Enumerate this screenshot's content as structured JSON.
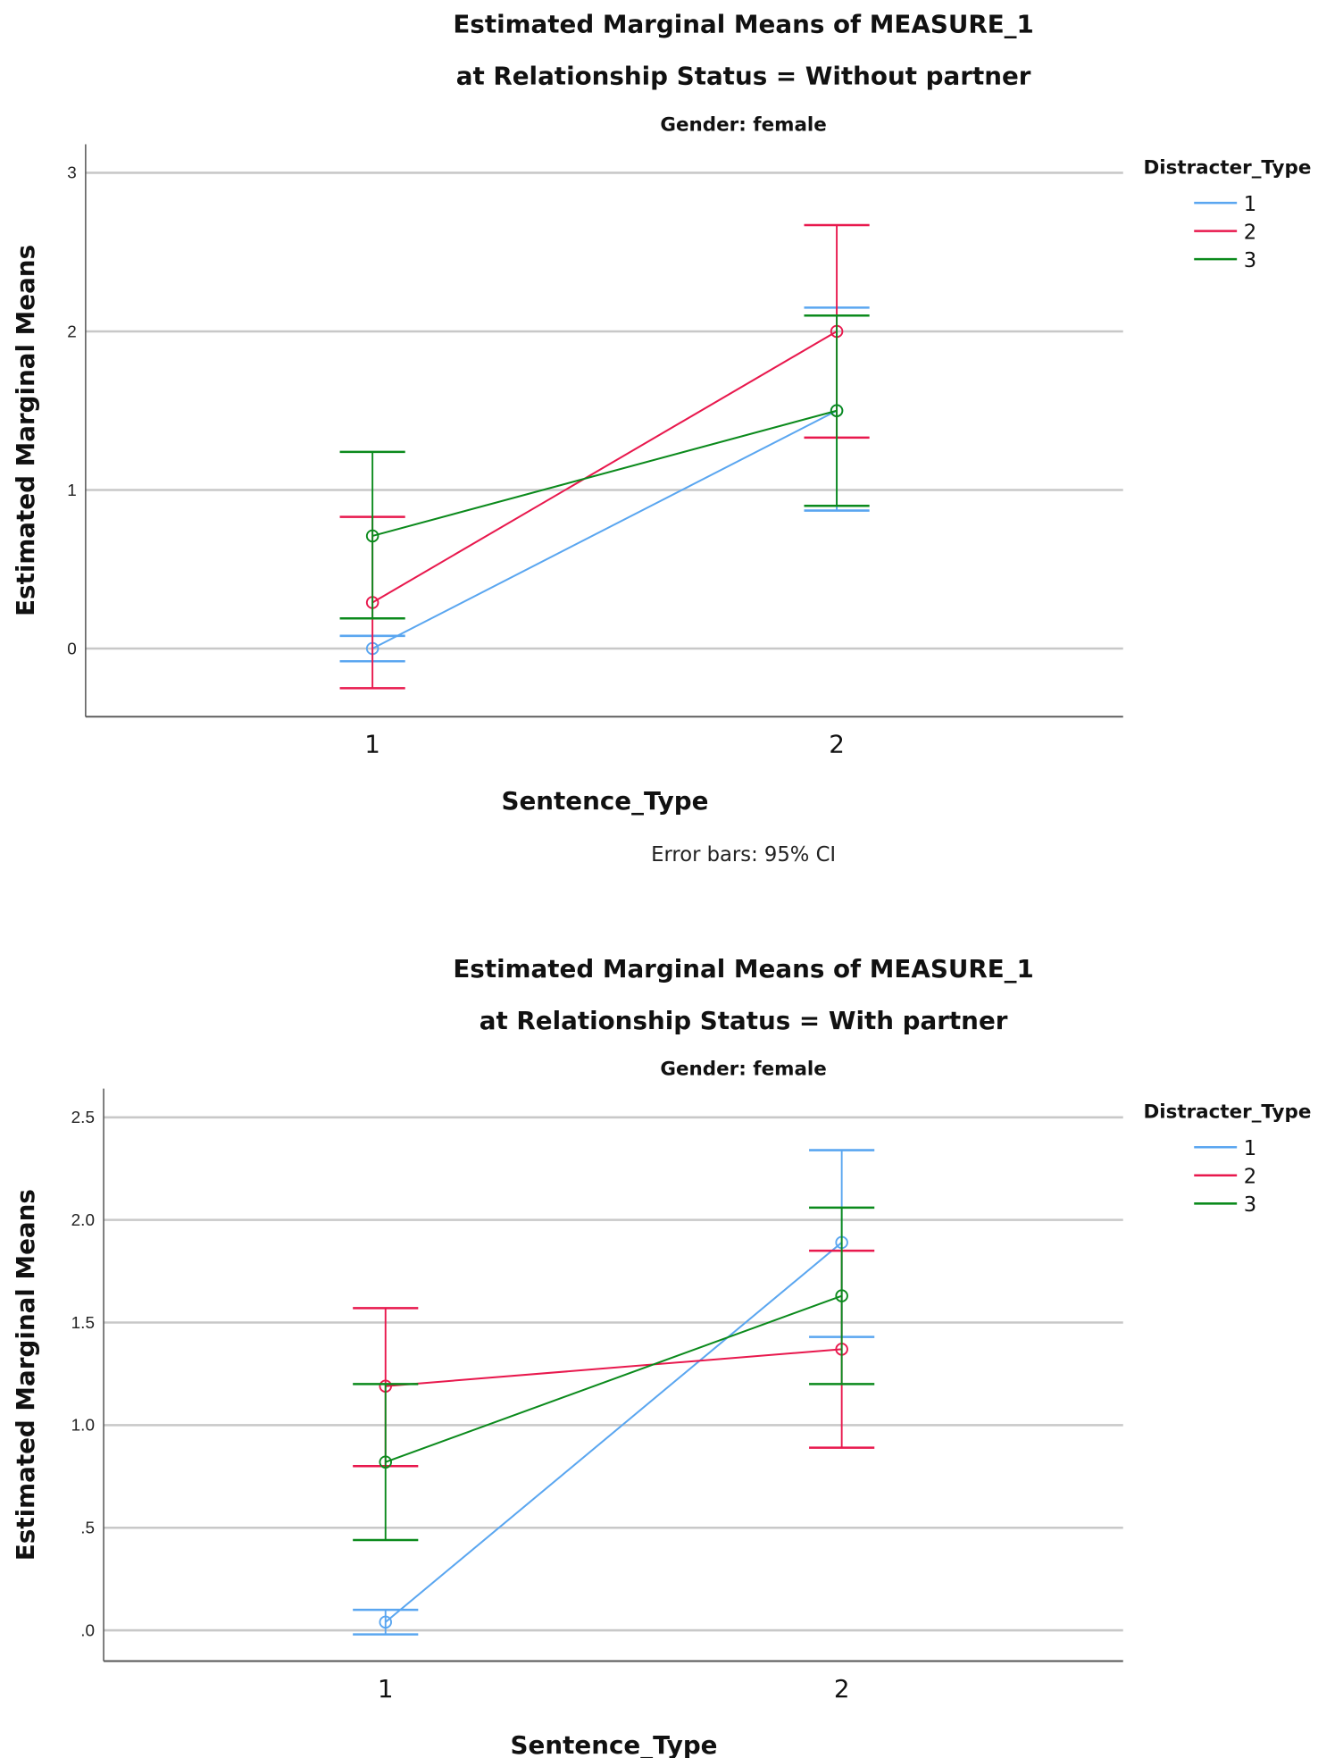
{
  "colors": {
    "1": "#5aa6f0",
    "2": "#e8184d",
    "3": "#0b8a1c",
    "grid": "#c8c8c8",
    "axis": "#555555"
  },
  "chart_data": [
    {
      "type": "line",
      "title": "Estimated Marginal Means of MEASURE_1",
      "title2": "at Relationship Status = Without partner",
      "subtitle": "Gender: female",
      "xlabel": "Sentence_Type",
      "ylabel": "Estimated Marginal Means",
      "categories": [
        "1",
        "2"
      ],
      "ylim": [
        -0.43,
        3.18
      ],
      "yticks": [
        0,
        1,
        2,
        3
      ],
      "ytick_labels": [
        "0",
        "1",
        "2",
        "3"
      ],
      "grid": true,
      "legend_title": "Distracter_Type",
      "legend_position": "top-right",
      "note": "Error bars: 95% CI",
      "series": [
        {
          "name": "1",
          "values": [
            0.0,
            1.5
          ],
          "ci_low": [
            -0.08,
            0.87
          ],
          "ci_high": [
            0.08,
            2.15
          ]
        },
        {
          "name": "2",
          "values": [
            0.29,
            2.0
          ],
          "ci_low": [
            -0.25,
            1.33
          ],
          "ci_high": [
            0.83,
            2.67
          ]
        },
        {
          "name": "3",
          "values": [
            0.71,
            1.5
          ],
          "ci_low": [
            0.19,
            0.9
          ],
          "ci_high": [
            1.24,
            2.1
          ]
        }
      ]
    },
    {
      "type": "line",
      "title": "Estimated Marginal Means of MEASURE_1",
      "title2": "at Relationship Status = With partner",
      "subtitle": "Gender: female",
      "xlabel": "Sentence_Type",
      "ylabel": "Estimated Marginal Means",
      "categories": [
        "1",
        "2"
      ],
      "ylim": [
        -0.15,
        2.64
      ],
      "yticks": [
        0,
        0.5,
        1,
        1.5,
        2,
        2.5
      ],
      "ytick_labels": [
        ".0",
        ".5",
        "1.0",
        "1.5",
        "2.0",
        "2.5"
      ],
      "grid": true,
      "legend_title": "Distracter_Type",
      "legend_position": "top-right",
      "series": [
        {
          "name": "1",
          "values": [
            0.04,
            1.89
          ],
          "ci_low": [
            -0.02,
            1.43
          ],
          "ci_high": [
            0.1,
            2.34
          ]
        },
        {
          "name": "2",
          "values": [
            1.19,
            1.37
          ],
          "ci_low": [
            0.8,
            0.89
          ],
          "ci_high": [
            1.57,
            1.85
          ]
        },
        {
          "name": "3",
          "values": [
            0.82,
            1.63
          ],
          "ci_low": [
            0.44,
            1.2
          ],
          "ci_high": [
            1.2,
            2.06
          ]
        }
      ]
    }
  ]
}
